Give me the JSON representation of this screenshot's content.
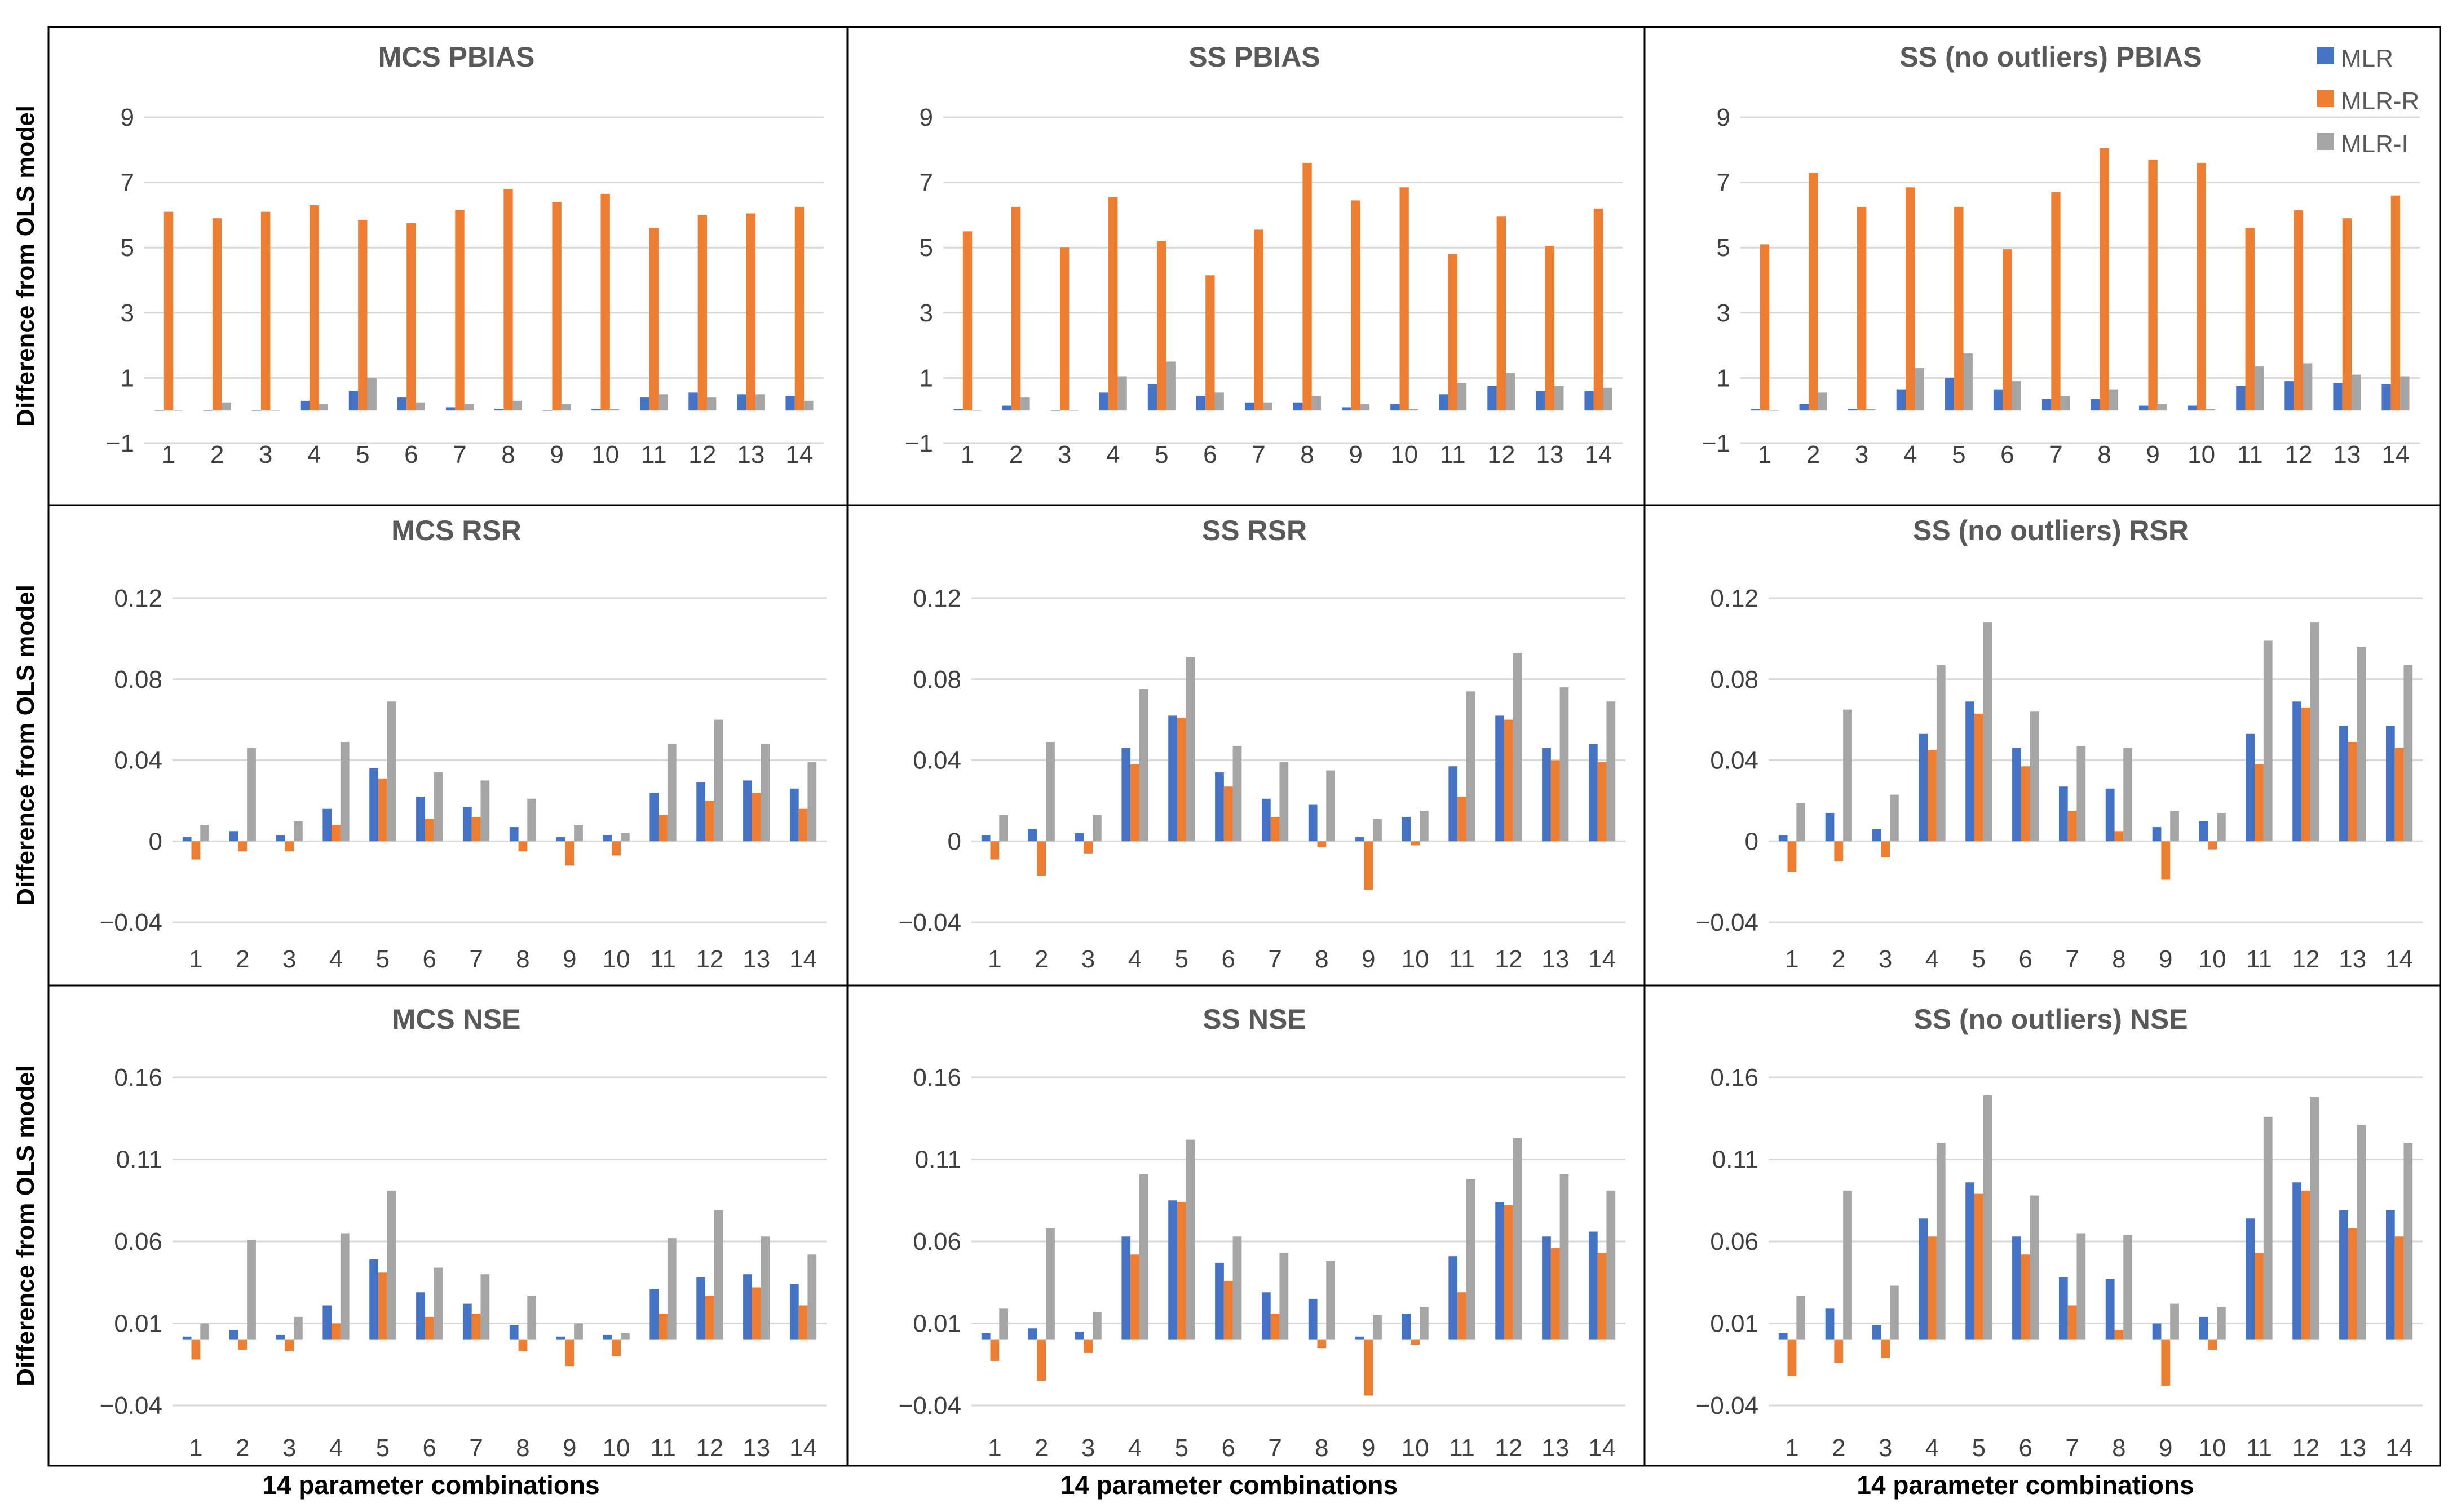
{
  "figure": {
    "ylabel": "Difference from OLS model",
    "xlabel": "14 parameter combinations"
  },
  "legend": {
    "placement": "top-right",
    "items": [
      {
        "label": "MLR",
        "color": "#4472C4"
      },
      {
        "label": "MLR-R",
        "color": "#ED7D31"
      },
      {
        "label": "MLR-I",
        "color": "#A5A5A5"
      }
    ]
  },
  "chart_data": [
    {
      "type": "bar",
      "title": "MCS PBIAS",
      "categories": [
        "1",
        "2",
        "3",
        "4",
        "5",
        "6",
        "7",
        "8",
        "9",
        "10",
        "11",
        "12",
        "13",
        "14"
      ],
      "ylim": [
        -1,
        9
      ],
      "yticks": [
        -1,
        1,
        3,
        5,
        7,
        9
      ],
      "ytick_labels": [
        "−1",
        "1",
        "3",
        "5",
        "7",
        "9"
      ],
      "grid": true,
      "series": [
        {
          "name": "MLR",
          "values": [
            0,
            0,
            0,
            0.3,
            0.6,
            0.4,
            0.1,
            0.05,
            0,
            0.05,
            0.4,
            0.55,
            0.5,
            0.45
          ]
        },
        {
          "name": "MLR-R",
          "values": [
            6.1,
            5.9,
            6.1,
            6.3,
            5.85,
            5.75,
            6.15,
            6.8,
            6.4,
            6.65,
            5.6,
            6.0,
            6.05,
            6.25
          ]
        },
        {
          "name": "MLR-I",
          "values": [
            0,
            0.25,
            0,
            0.2,
            1.0,
            0.25,
            0.2,
            0.3,
            0.2,
            0.05,
            0.5,
            0.4,
            0.5,
            0.3
          ]
        }
      ]
    },
    {
      "type": "bar",
      "title": "SS PBIAS",
      "categories": [
        "1",
        "2",
        "3",
        "4",
        "5",
        "6",
        "7",
        "8",
        "9",
        "10",
        "11",
        "12",
        "13",
        "14"
      ],
      "ylim": [
        -1,
        9
      ],
      "yticks": [
        -1,
        1,
        3,
        5,
        7,
        9
      ],
      "ytick_labels": [
        "−1",
        "1",
        "3",
        "5",
        "7",
        "9"
      ],
      "grid": true,
      "series": [
        {
          "name": "MLR",
          "values": [
            0.05,
            0.15,
            0,
            0.55,
            0.8,
            0.45,
            0.25,
            0.25,
            0.1,
            0.2,
            0.5,
            0.75,
            0.6,
            0.6
          ]
        },
        {
          "name": "MLR-R",
          "values": [
            5.5,
            6.25,
            5.0,
            6.55,
            5.2,
            4.15,
            5.55,
            7.6,
            6.45,
            6.85,
            4.8,
            5.95,
            5.05,
            6.2
          ]
        },
        {
          "name": "MLR-I",
          "values": [
            0,
            0.4,
            0,
            1.05,
            1.5,
            0.55,
            0.25,
            0.45,
            0.2,
            0.05,
            0.85,
            1.15,
            0.75,
            0.7
          ]
        }
      ]
    },
    {
      "type": "bar",
      "title": "SS (no outliers) PBIAS",
      "categories": [
        "1",
        "2",
        "3",
        "4",
        "5",
        "6",
        "7",
        "8",
        "9",
        "10",
        "11",
        "12",
        "13",
        "14"
      ],
      "ylim": [
        -1,
        9
      ],
      "yticks": [
        -1,
        1,
        3,
        5,
        7,
        9
      ],
      "ytick_labels": [
        "−1",
        "1",
        "3",
        "5",
        "7",
        "9"
      ],
      "grid": true,
      "series": [
        {
          "name": "MLR",
          "values": [
            0.05,
            0.2,
            0.05,
            0.65,
            1.0,
            0.65,
            0.35,
            0.35,
            0.15,
            0.15,
            0.75,
            0.9,
            0.85,
            0.8
          ]
        },
        {
          "name": "MLR-R",
          "values": [
            5.1,
            7.3,
            6.25,
            6.85,
            6.25,
            4.95,
            6.7,
            8.05,
            7.7,
            7.6,
            5.6,
            6.15,
            5.9,
            6.6
          ]
        },
        {
          "name": "MLR-I",
          "values": [
            0,
            0.55,
            0.05,
            1.3,
            1.75,
            0.9,
            0.45,
            0.65,
            0.2,
            0.05,
            1.35,
            1.45,
            1.1,
            1.05
          ]
        }
      ]
    },
    {
      "type": "bar",
      "title": "MCS RSR",
      "categories": [
        "1",
        "2",
        "3",
        "4",
        "5",
        "6",
        "7",
        "8",
        "9",
        "10",
        "11",
        "12",
        "13",
        "14"
      ],
      "ylim": [
        -0.04,
        0.12
      ],
      "yticks": [
        -0.04,
        0,
        0.04,
        0.08,
        0.12
      ],
      "ytick_labels": [
        "−0.04",
        "0",
        "0.04",
        "0.08",
        "0.12"
      ],
      "grid": true,
      "series": [
        {
          "name": "MLR",
          "values": [
            0.002,
            0.005,
            0.003,
            0.016,
            0.036,
            0.022,
            0.017,
            0.007,
            0.002,
            0.003,
            0.024,
            0.029,
            0.03,
            0.026
          ]
        },
        {
          "name": "MLR-R",
          "values": [
            -0.009,
            -0.005,
            -0.005,
            0.008,
            0.031,
            0.011,
            0.012,
            -0.005,
            -0.012,
            -0.007,
            0.013,
            0.02,
            0.024,
            0.016
          ]
        },
        {
          "name": "MLR-I",
          "values": [
            0.008,
            0.046,
            0.01,
            0.049,
            0.069,
            0.034,
            0.03,
            0.021,
            0.008,
            0.004,
            0.048,
            0.06,
            0.048,
            0.039
          ]
        }
      ]
    },
    {
      "type": "bar",
      "title": "SS RSR",
      "categories": [
        "1",
        "2",
        "3",
        "4",
        "5",
        "6",
        "7",
        "8",
        "9",
        "10",
        "11",
        "12",
        "13",
        "14"
      ],
      "ylim": [
        -0.04,
        0.12
      ],
      "yticks": [
        -0.04,
        0,
        0.04,
        0.08,
        0.12
      ],
      "ytick_labels": [
        "−0.04",
        "0",
        "0.04",
        "0.08",
        "0.12"
      ],
      "grid": true,
      "series": [
        {
          "name": "MLR",
          "values": [
            0.003,
            0.006,
            0.004,
            0.046,
            0.062,
            0.034,
            0.021,
            0.018,
            0.002,
            0.012,
            0.037,
            0.062,
            0.046,
            0.048
          ]
        },
        {
          "name": "MLR-R",
          "values": [
            -0.009,
            -0.017,
            -0.006,
            0.038,
            0.061,
            0.027,
            0.012,
            -0.003,
            -0.024,
            -0.002,
            0.022,
            0.06,
            0.04,
            0.039
          ]
        },
        {
          "name": "MLR-I",
          "values": [
            0.013,
            0.049,
            0.013,
            0.075,
            0.091,
            0.047,
            0.039,
            0.035,
            0.011,
            0.015,
            0.074,
            0.093,
            0.076,
            0.069
          ]
        }
      ]
    },
    {
      "type": "bar",
      "title": "SS (no outliers) RSR",
      "categories": [
        "1",
        "2",
        "3",
        "4",
        "5",
        "6",
        "7",
        "8",
        "9",
        "10",
        "11",
        "12",
        "13",
        "14"
      ],
      "ylim": [
        -0.04,
        0.12
      ],
      "yticks": [
        -0.04,
        0,
        0.04,
        0.08,
        0.12
      ],
      "ytick_labels": [
        "−0.04",
        "0",
        "0.04",
        "0.08",
        "0.12"
      ],
      "grid": true,
      "series": [
        {
          "name": "MLR",
          "values": [
            0.003,
            0.014,
            0.006,
            0.053,
            0.069,
            0.046,
            0.027,
            0.026,
            0.007,
            0.01,
            0.053,
            0.069,
            0.057,
            0.057
          ]
        },
        {
          "name": "MLR-R",
          "values": [
            -0.015,
            -0.01,
            -0.008,
            0.045,
            0.063,
            0.037,
            0.015,
            0.005,
            -0.019,
            -0.004,
            0.038,
            0.066,
            0.049,
            0.046
          ]
        },
        {
          "name": "MLR-I",
          "values": [
            0.019,
            0.065,
            0.023,
            0.087,
            0.108,
            0.064,
            0.047,
            0.046,
            0.015,
            0.014,
            0.099,
            0.108,
            0.096,
            0.087
          ]
        }
      ]
    },
    {
      "type": "bar",
      "title": "MCS NSE",
      "categories": [
        "1",
        "2",
        "3",
        "4",
        "5",
        "6",
        "7",
        "8",
        "9",
        "10",
        "11",
        "12",
        "13",
        "14"
      ],
      "ylim": [
        -0.04,
        0.16
      ],
      "yticks": [
        -0.04,
        0.01,
        0.06,
        0.11,
        0.16
      ],
      "ytick_labels": [
        "−0.04",
        "0.01",
        "0.06",
        "0.11",
        "0.16"
      ],
      "grid": true,
      "series": [
        {
          "name": "MLR",
          "values": [
            0.002,
            0.006,
            0.003,
            0.021,
            0.049,
            0.029,
            0.022,
            0.009,
            0.002,
            0.003,
            0.031,
            0.038,
            0.04,
            0.034
          ]
        },
        {
          "name": "MLR-R",
          "values": [
            -0.012,
            -0.006,
            -0.007,
            0.01,
            0.041,
            0.014,
            0.016,
            -0.007,
            -0.016,
            -0.01,
            0.016,
            0.027,
            0.032,
            0.021
          ]
        },
        {
          "name": "MLR-I",
          "values": [
            0.01,
            0.061,
            0.014,
            0.065,
            0.091,
            0.044,
            0.04,
            0.027,
            0.01,
            0.004,
            0.062,
            0.079,
            0.063,
            0.052
          ]
        }
      ]
    },
    {
      "type": "bar",
      "title": "SS NSE",
      "categories": [
        "1",
        "2",
        "3",
        "4",
        "5",
        "6",
        "7",
        "8",
        "9",
        "10",
        "11",
        "12",
        "13",
        "14"
      ],
      "ylim": [
        -0.04,
        0.16
      ],
      "yticks": [
        -0.04,
        0.01,
        0.06,
        0.11,
        0.16
      ],
      "ytick_labels": [
        "−0.04",
        "0.01",
        "0.06",
        "0.11",
        "0.16"
      ],
      "grid": true,
      "series": [
        {
          "name": "MLR",
          "values": [
            0.004,
            0.007,
            0.005,
            0.063,
            0.085,
            0.047,
            0.029,
            0.025,
            0.002,
            0.016,
            0.051,
            0.084,
            0.063,
            0.066
          ]
        },
        {
          "name": "MLR-R",
          "values": [
            -0.013,
            -0.025,
            -0.008,
            0.052,
            0.084,
            0.036,
            0.016,
            -0.005,
            -0.034,
            -0.003,
            0.029,
            0.082,
            0.056,
            0.053
          ]
        },
        {
          "name": "MLR-I",
          "values": [
            0.019,
            0.068,
            0.017,
            0.101,
            0.122,
            0.063,
            0.053,
            0.048,
            0.015,
            0.02,
            0.098,
            0.123,
            0.101,
            0.091
          ]
        }
      ]
    },
    {
      "type": "bar",
      "title": "SS (no outliers) NSE",
      "categories": [
        "1",
        "2",
        "3",
        "4",
        "5",
        "6",
        "7",
        "8",
        "9",
        "10",
        "11",
        "12",
        "13",
        "14"
      ],
      "ylim": [
        -0.04,
        0.16
      ],
      "yticks": [
        -0.04,
        0.01,
        0.06,
        0.11,
        0.16
      ],
      "ytick_labels": [
        "−0.04",
        "0.01",
        "0.06",
        "0.11",
        "0.16"
      ],
      "grid": true,
      "series": [
        {
          "name": "MLR",
          "values": [
            0.004,
            0.019,
            0.009,
            0.074,
            0.096,
            0.063,
            0.038,
            0.037,
            0.01,
            0.014,
            0.074,
            0.096,
            0.079,
            0.079
          ]
        },
        {
          "name": "MLR-R",
          "values": [
            -0.022,
            -0.014,
            -0.011,
            0.063,
            0.089,
            0.052,
            0.021,
            0.006,
            -0.028,
            -0.006,
            0.053,
            0.091,
            0.068,
            0.063
          ]
        },
        {
          "name": "MLR-I",
          "values": [
            0.027,
            0.091,
            0.033,
            0.12,
            0.149,
            0.088,
            0.065,
            0.064,
            0.022,
            0.02,
            0.136,
            0.148,
            0.131,
            0.12
          ]
        }
      ]
    }
  ]
}
